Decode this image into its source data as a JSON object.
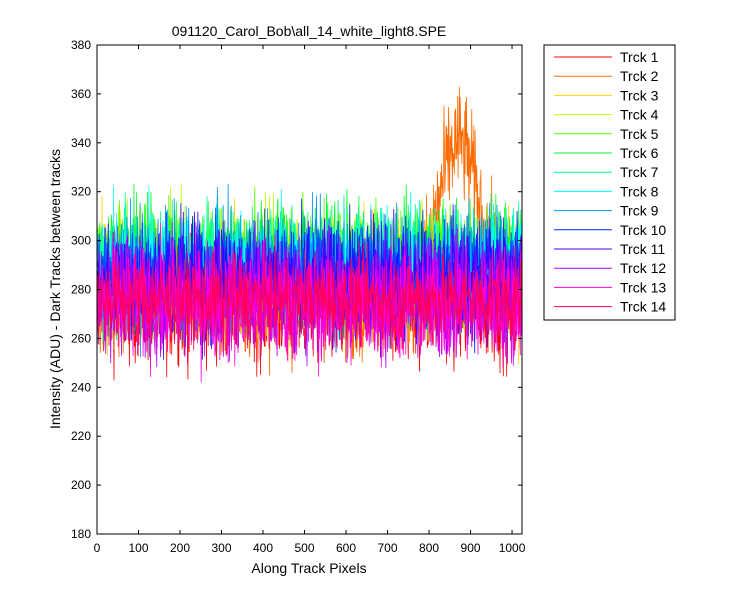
{
  "chart_data": {
    "type": "line",
    "title": "091120_Carol_Bob\\all_14_white_light8.SPE",
    "xlabel": "Along Track Pixels",
    "ylabel": "Intensity (ADU) - Dark Tracks between tracks",
    "xlim": [
      0,
      1024
    ],
    "ylim": [
      180,
      380
    ],
    "x_ticks": [
      0,
      100,
      200,
      300,
      400,
      500,
      600,
      700,
      800,
      900,
      1000
    ],
    "y_ticks": [
      180,
      200,
      220,
      240,
      260,
      280,
      300,
      320,
      340,
      360,
      380
    ],
    "x_tick_labels": [
      "0",
      "100",
      "200",
      "300",
      "400",
      "500",
      "600",
      "700",
      "800",
      "900",
      "1000"
    ],
    "y_tick_labels": [
      "180",
      "200",
      "220",
      "240",
      "260",
      "280",
      "300",
      "320",
      "340",
      "360",
      "380"
    ],
    "grid": false,
    "legend_position": "outside-right",
    "series": [
      {
        "name": "Trck 1",
        "color": "#ff0000",
        "mean": 274,
        "spread": 12,
        "peak": 0,
        "peak_center": 0,
        "peak_width": 0
      },
      {
        "name": "Trck 2",
        "color": "#ff6a00",
        "mean": 276,
        "spread": 12,
        "peak": 64,
        "peak_center": 870,
        "peak_width": 70
      },
      {
        "name": "Trck 3",
        "color": "#ffd500",
        "mean": 285,
        "spread": 12,
        "peak": 0,
        "peak_center": 0,
        "peak_width": 0
      },
      {
        "name": "Trck 4",
        "color": "#bfff00",
        "mean": 288,
        "spread": 12,
        "peak": 0,
        "peak_center": 0,
        "peak_width": 0
      },
      {
        "name": "Trck 5",
        "color": "#55ff00",
        "mean": 290,
        "spread": 12,
        "peak": 0,
        "peak_center": 0,
        "peak_width": 0
      },
      {
        "name": "Trck 6",
        "color": "#00ff2a",
        "mean": 291,
        "spread": 12,
        "peak": 0,
        "peak_center": 0,
        "peak_width": 0
      },
      {
        "name": "Trck 7",
        "color": "#00ff95",
        "mean": 290,
        "spread": 12,
        "peak": 0,
        "peak_center": 0,
        "peak_width": 0
      },
      {
        "name": "Trck 8",
        "color": "#00ffff",
        "mean": 289,
        "spread": 12,
        "peak": 0,
        "peak_center": 0,
        "peak_width": 0
      },
      {
        "name": "Trck 9",
        "color": "#0095ff",
        "mean": 288,
        "spread": 12,
        "peak": 0,
        "peak_center": 0,
        "peak_width": 0
      },
      {
        "name": "Trck 10",
        "color": "#002aff",
        "mean": 285,
        "spread": 12,
        "peak": 0,
        "peak_center": 0,
        "peak_width": 0
      },
      {
        "name": "Trck 11",
        "color": "#4000ff",
        "mean": 283,
        "spread": 12,
        "peak": 0,
        "peak_center": 0,
        "peak_width": 0
      },
      {
        "name": "Trck 12",
        "color": "#aa00ff",
        "mean": 278,
        "spread": 12,
        "peak": 0,
        "peak_center": 0,
        "peak_width": 0
      },
      {
        "name": "Trck 13",
        "color": "#ff00d5",
        "mean": 274,
        "spread": 12,
        "peak": 0,
        "peak_center": 0,
        "peak_width": 0
      },
      {
        "name": "Trck 14",
        "color": "#ff0060",
        "mean": 276,
        "spread": 9,
        "peak": 0,
        "peak_center": 0,
        "peak_width": 0
      }
    ]
  }
}
